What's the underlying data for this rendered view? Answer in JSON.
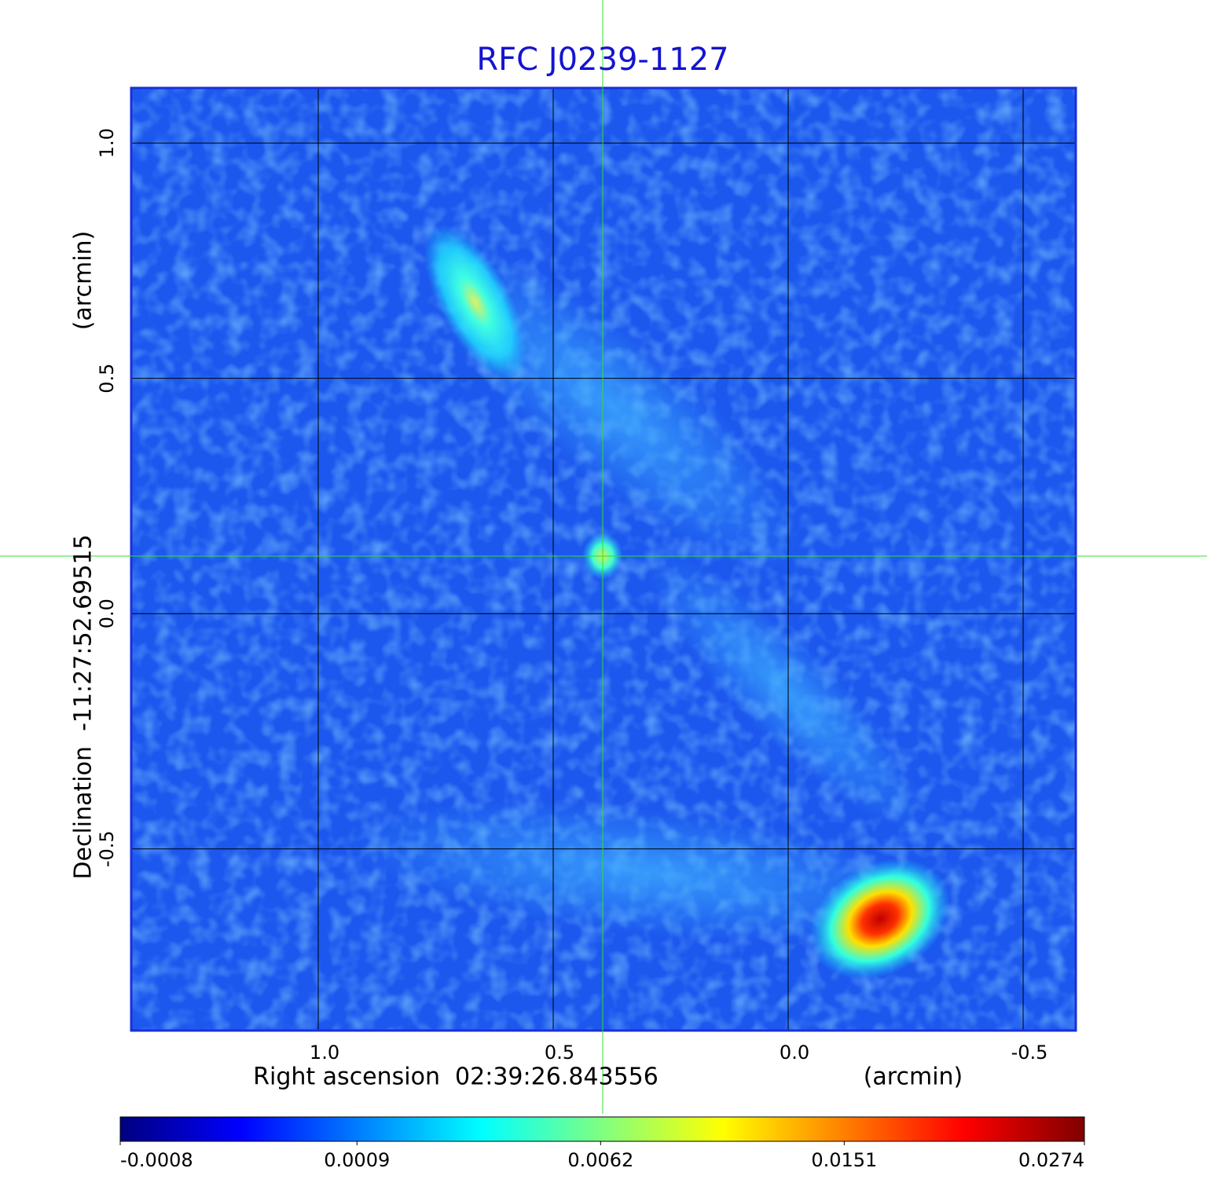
{
  "chart_data": {
    "type": "image",
    "title": "RFC J0239-1127",
    "x_label": "Right ascension  02:39:26.843556",
    "x_unit_label": "(arcmin)",
    "y_label": "Declination  -11:27:52.69515",
    "y_unit_label": "(arcmin)",
    "xlim": [
      1.398,
      -0.612
    ],
    "ylim": [
      -0.886,
      1.117
    ],
    "xticks": [
      {
        "value": 1,
        "label": "1.0"
      },
      0.5,
      {
        "value": 0,
        "label": "0.0"
      },
      -0.5
    ],
    "yticks": [
      -0.5,
      {
        "value": 0,
        "label": "0.0"
      },
      0.5,
      {
        "value": 1,
        "label": "1.0"
      }
    ],
    "grid": true,
    "colorbar": {
      "clim": [
        -0.0008,
        0.0274
      ],
      "scale": "sqrt",
      "ticks": [
        -0.0008,
        0.0009,
        0.0062,
        0.0151,
        0.0274
      ],
      "colormap": [
        "#00007f",
        "#0000ff",
        "#0080ff",
        "#00ffff",
        "#80ff80",
        "#ffff00",
        "#ff8000",
        "#ff0000",
        "#7f0000"
      ]
    }
  }
}
